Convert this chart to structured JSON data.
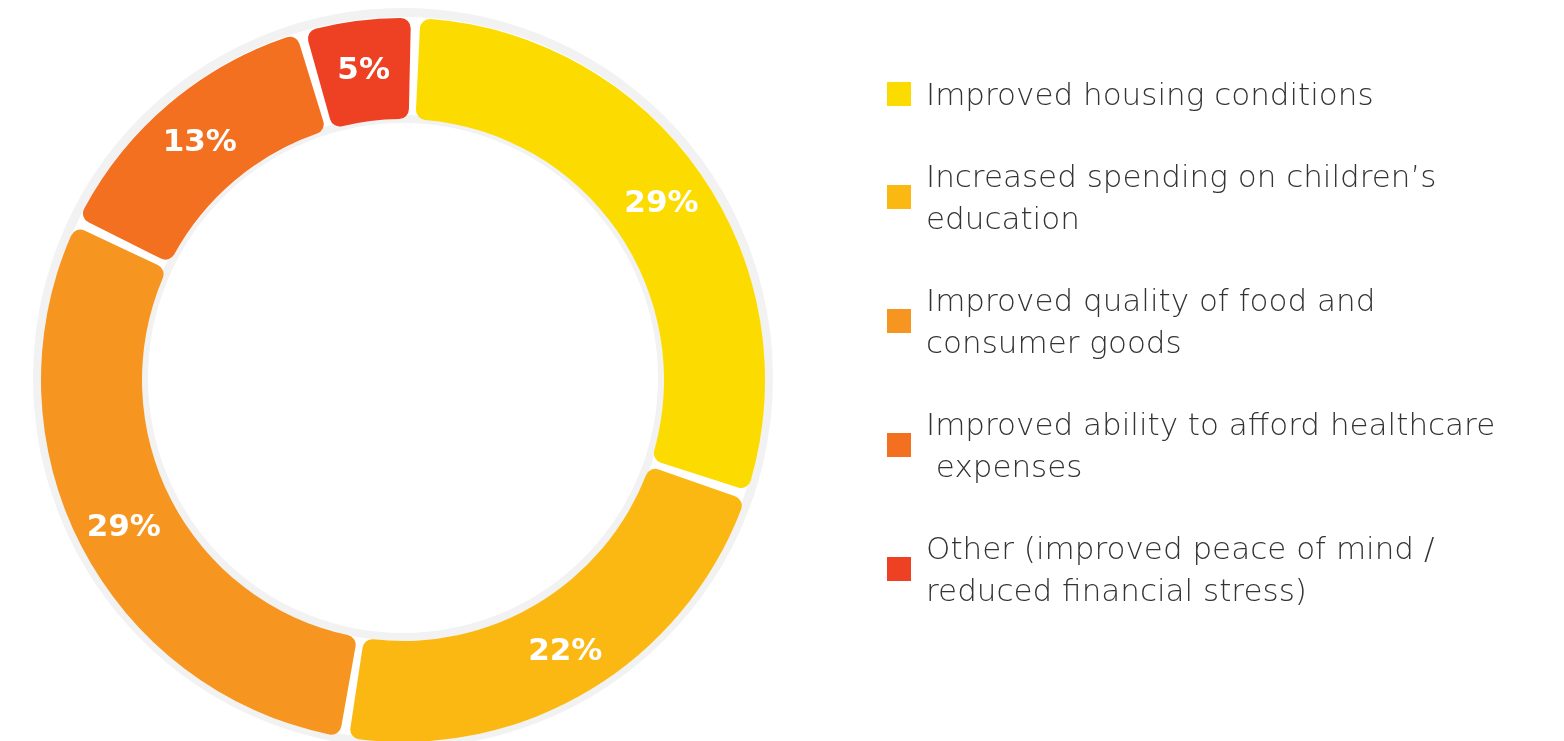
{
  "chart_data": {
    "type": "donut",
    "categories": [
      "Improved housing conditions",
      "Increased spending on children’s education",
      "Improved quality of food and consumer goods",
      "Improved ability to afford healthcare expenses",
      "Other (improved peace of mind / reduced financial stress)"
    ],
    "values": [
      29,
      22,
      29,
      13,
      5
    ],
    "value_labels": [
      "29%",
      "22%",
      "29%",
      "13%",
      "5%"
    ],
    "colors": [
      "#fcdc00",
      "#fbb813",
      "#f6951f",
      "#f37021",
      "#ee4023"
    ],
    "legend": "right"
  }
}
